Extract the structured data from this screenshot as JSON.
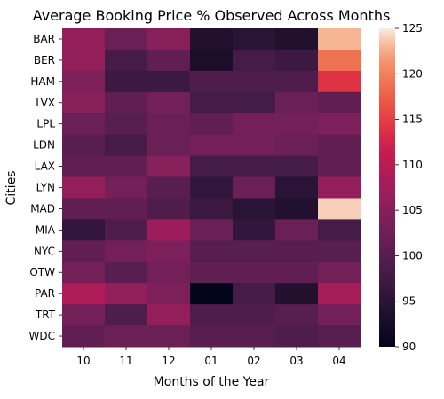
{
  "chart_data": {
    "type": "heatmap",
    "title": "Average Booking Price % Observed Across Months",
    "xlabel": "Months of the Year",
    "ylabel": "Cities",
    "x": [
      "10",
      "11",
      "12",
      "01",
      "02",
      "03",
      "04"
    ],
    "y": [
      "BAR",
      "BER",
      "HAM",
      "LVX",
      "LPL",
      "LDN",
      "LAX",
      "LYN",
      "MAD",
      "MIA",
      "NYC",
      "OTW",
      "PAR",
      "TRT",
      "WDC"
    ],
    "values": [
      [
        106,
        102,
        105,
        94,
        95,
        94,
        123
      ],
      [
        106,
        98,
        101,
        93,
        98,
        97,
        119
      ],
      [
        104,
        97,
        97,
        99,
        99,
        99,
        114
      ],
      [
        105,
        101,
        103,
        98,
        98,
        102,
        101
      ],
      [
        102,
        100,
        102,
        101,
        103,
        103,
        104
      ],
      [
        100,
        98,
        102,
        103,
        103,
        102,
        101
      ],
      [
        101,
        101,
        105,
        98,
        98,
        98,
        101
      ],
      [
        106,
        103,
        100,
        96,
        102,
        95,
        106
      ],
      [
        101,
        101,
        99,
        97,
        95,
        94,
        124
      ],
      [
        96,
        99,
        107,
        102,
        96,
        102,
        98
      ],
      [
        101,
        103,
        104,
        100,
        100,
        100,
        100
      ],
      [
        103,
        100,
        103,
        101,
        101,
        101,
        103
      ],
      [
        109,
        106,
        104,
        90,
        98,
        94,
        108
      ],
      [
        103,
        99,
        106,
        99,
        99,
        100,
        103
      ],
      [
        101,
        102,
        102,
        100,
        100,
        99,
        100
      ]
    ],
    "colorbar": {
      "min": 90,
      "max": 125,
      "ticks": [
        90,
        95,
        100,
        105,
        110,
        115,
        120,
        125
      ]
    },
    "colormap": "rocket"
  }
}
